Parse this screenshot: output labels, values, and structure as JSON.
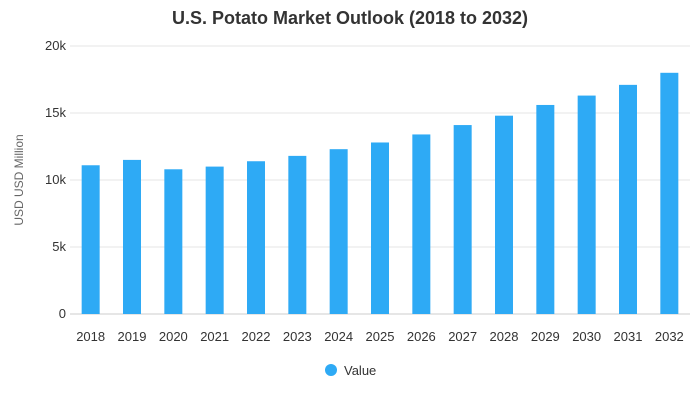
{
  "chart_data": {
    "type": "bar",
    "title": "U.S. Potato Market Outlook (2018 to 2032)",
    "xlabel": "",
    "ylabel": "USD USD Million",
    "categories": [
      "2018",
      "2019",
      "2020",
      "2021",
      "2022",
      "2023",
      "2024",
      "2025",
      "2026",
      "2027",
      "2028",
      "2029",
      "2030",
      "2031",
      "2032"
    ],
    "series": [
      {
        "name": "Value",
        "color": "#2eaaf5",
        "values": [
          11100,
          11500,
          10800,
          11000,
          11400,
          11800,
          12300,
          12800,
          13400,
          14100,
          14800,
          15600,
          16300,
          17100,
          18000
        ]
      }
    ],
    "ylim": [
      0,
      20000
    ],
    "yticks": [
      {
        "value": 0,
        "label": "0"
      },
      {
        "value": 5000,
        "label": "5k"
      },
      {
        "value": 10000,
        "label": "10k"
      },
      {
        "value": 15000,
        "label": "15k"
      },
      {
        "value": 20000,
        "label": "20k"
      }
    ],
    "grid": true,
    "legend_position": "bottom-center"
  }
}
